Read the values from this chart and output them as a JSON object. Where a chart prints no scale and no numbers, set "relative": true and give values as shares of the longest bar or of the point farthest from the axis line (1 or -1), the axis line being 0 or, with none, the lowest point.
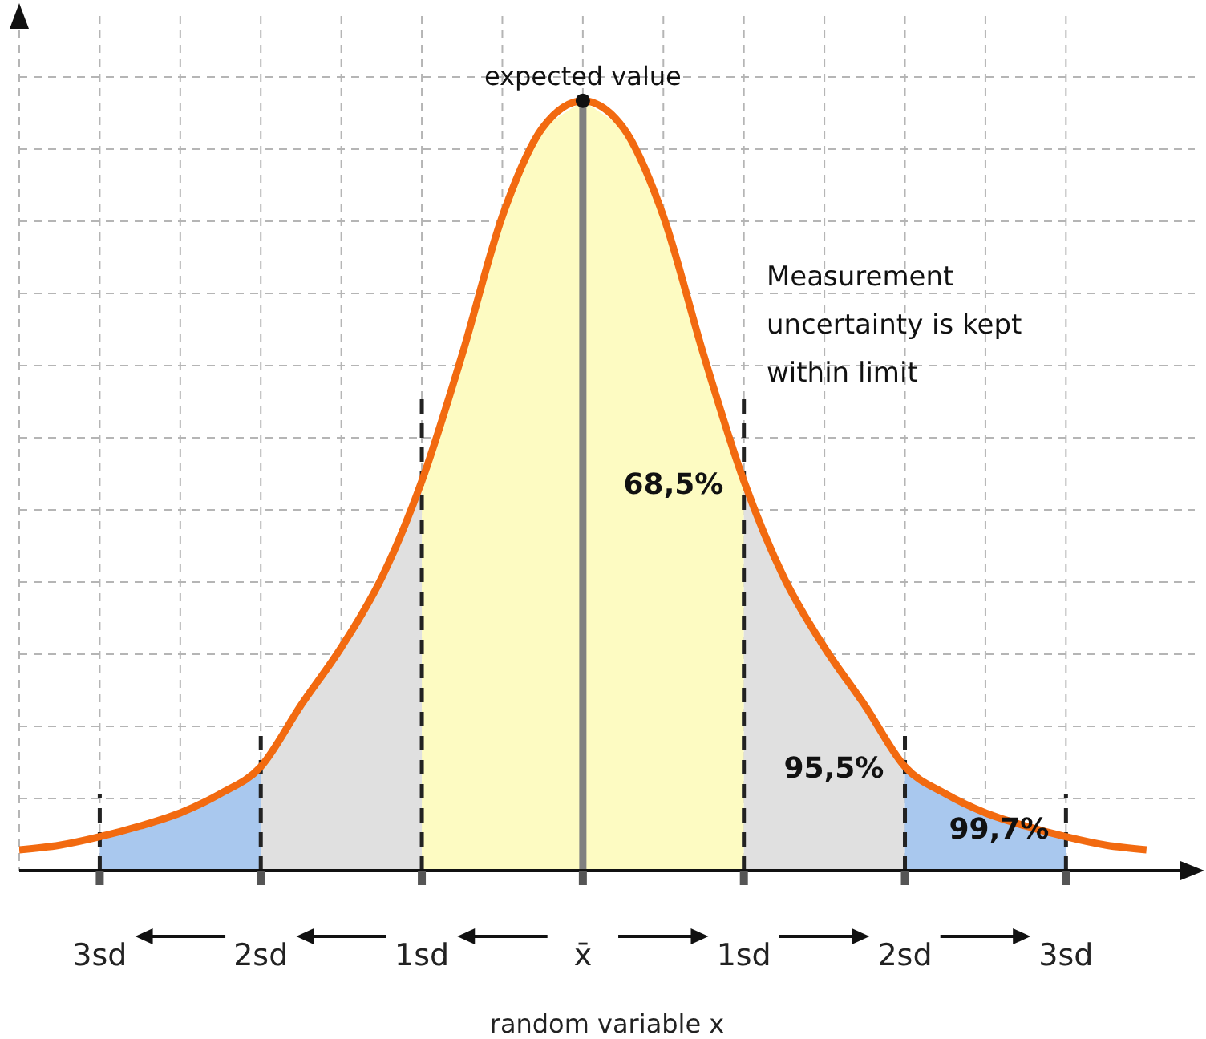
{
  "chart_data": {
    "type": "line",
    "relative": true,
    "xlabel": "random variable x",
    "xlim": [
      -3.5,
      3.8
    ],
    "xticks": [
      {
        "value": -3,
        "label": "3sd"
      },
      {
        "value": -2,
        "label": "2sd"
      },
      {
        "value": -1,
        "label": "1sd"
      },
      {
        "value": 0,
        "label": "x̄"
      },
      {
        "value": 1,
        "label": "1sd"
      },
      {
        "value": 2,
        "label": "2sd"
      },
      {
        "value": 3,
        "label": "3sd"
      }
    ],
    "tick_labels": "x",
    "grid": true,
    "marker": "none",
    "line_style": "solid",
    "series": [
      {
        "type": "area",
        "color": "#a9c8ee",
        "x": [
          -3,
          -2.75,
          -2.5,
          -2.25,
          -2
        ],
        "values": [
          0.044,
          0.058,
          0.075,
          0.1,
          0.135
        ]
      },
      {
        "type": "area",
        "color": "#e0e0e0",
        "x": [
          -2,
          -1.75,
          -1.5,
          -1.25,
          -1
        ],
        "values": [
          0.135,
          0.215,
          0.29,
          0.38,
          0.506
        ]
      },
      {
        "type": "area",
        "color": "#fdfbc2",
        "x": [
          -1,
          -0.75,
          -0.5,
          -0.25,
          0,
          0.25,
          0.5,
          0.75,
          1
        ],
        "values": [
          0.506,
          0.67,
          0.85,
          0.965,
          1,
          0.965,
          0.85,
          0.67,
          0.506
        ]
      },
      {
        "type": "area",
        "color": "#e0e0e0",
        "x": [
          1,
          1.25,
          1.5,
          1.75,
          2
        ],
        "values": [
          0.506,
          0.38,
          0.29,
          0.215,
          0.135
        ]
      },
      {
        "type": "area",
        "color": "#a9c8ee",
        "x": [
          2,
          2.25,
          2.5,
          2.75,
          3
        ],
        "values": [
          0.135,
          0.1,
          0.075,
          0.058,
          0.044
        ]
      },
      {
        "type": "line",
        "color": "#808080",
        "x": [
          0,
          0
        ],
        "values": [
          0,
          1
        ]
      },
      {
        "type": "line",
        "color": "#222222",
        "line_style": "dashed",
        "x": [
          -3,
          -3
        ],
        "values": [
          0,
          0.1
        ]
      },
      {
        "type": "line",
        "color": "#222222",
        "line_style": "dashed",
        "x": [
          -2,
          -2
        ],
        "values": [
          0,
          0.18
        ]
      },
      {
        "type": "line",
        "color": "#222222",
        "line_style": "dashed",
        "x": [
          -1,
          -1
        ],
        "values": [
          0,
          0.62
        ]
      },
      {
        "type": "line",
        "color": "#222222",
        "line_style": "dashed",
        "x": [
          1,
          1
        ],
        "values": [
          0,
          0.62
        ]
      },
      {
        "type": "line",
        "color": "#222222",
        "line_style": "dashed",
        "x": [
          2,
          2
        ],
        "values": [
          0,
          0.18
        ]
      },
      {
        "type": "line",
        "color": "#222222",
        "line_style": "dashed",
        "x": [
          3,
          3
        ],
        "values": [
          0,
          0.1
        ]
      },
      {
        "color": "#f26a10",
        "x": [
          -3.5,
          -3.25,
          -3,
          -2.75,
          -2.5,
          -2.25,
          -2,
          -1.75,
          -1.5,
          -1.25,
          -1,
          -0.75,
          -0.5,
          -0.25,
          0,
          0.25,
          0.5,
          0.75,
          1,
          1.25,
          1.5,
          1.75,
          2,
          2.25,
          2.5,
          2.75,
          3,
          3.25,
          3.5
        ],
        "values": [
          0.027,
          0.033,
          0.044,
          0.058,
          0.075,
          0.1,
          0.135,
          0.215,
          0.29,
          0.38,
          0.506,
          0.67,
          0.85,
          0.965,
          1,
          0.965,
          0.85,
          0.67,
          0.506,
          0.38,
          0.29,
          0.215,
          0.135,
          0.1,
          0.075,
          0.058,
          0.044,
          0.033,
          0.027
        ]
      },
      {
        "type": "scatter",
        "color": "#111111",
        "marker": "circle",
        "x": [
          0
        ],
        "values": [
          1
        ]
      }
    ],
    "annotations": [
      {
        "text": "expected value",
        "x": 0,
        "y": 1
      },
      "Measurement uncertainty is kept within limit",
      "68,5%",
      "95,5%",
      "99,7%"
    ]
  }
}
